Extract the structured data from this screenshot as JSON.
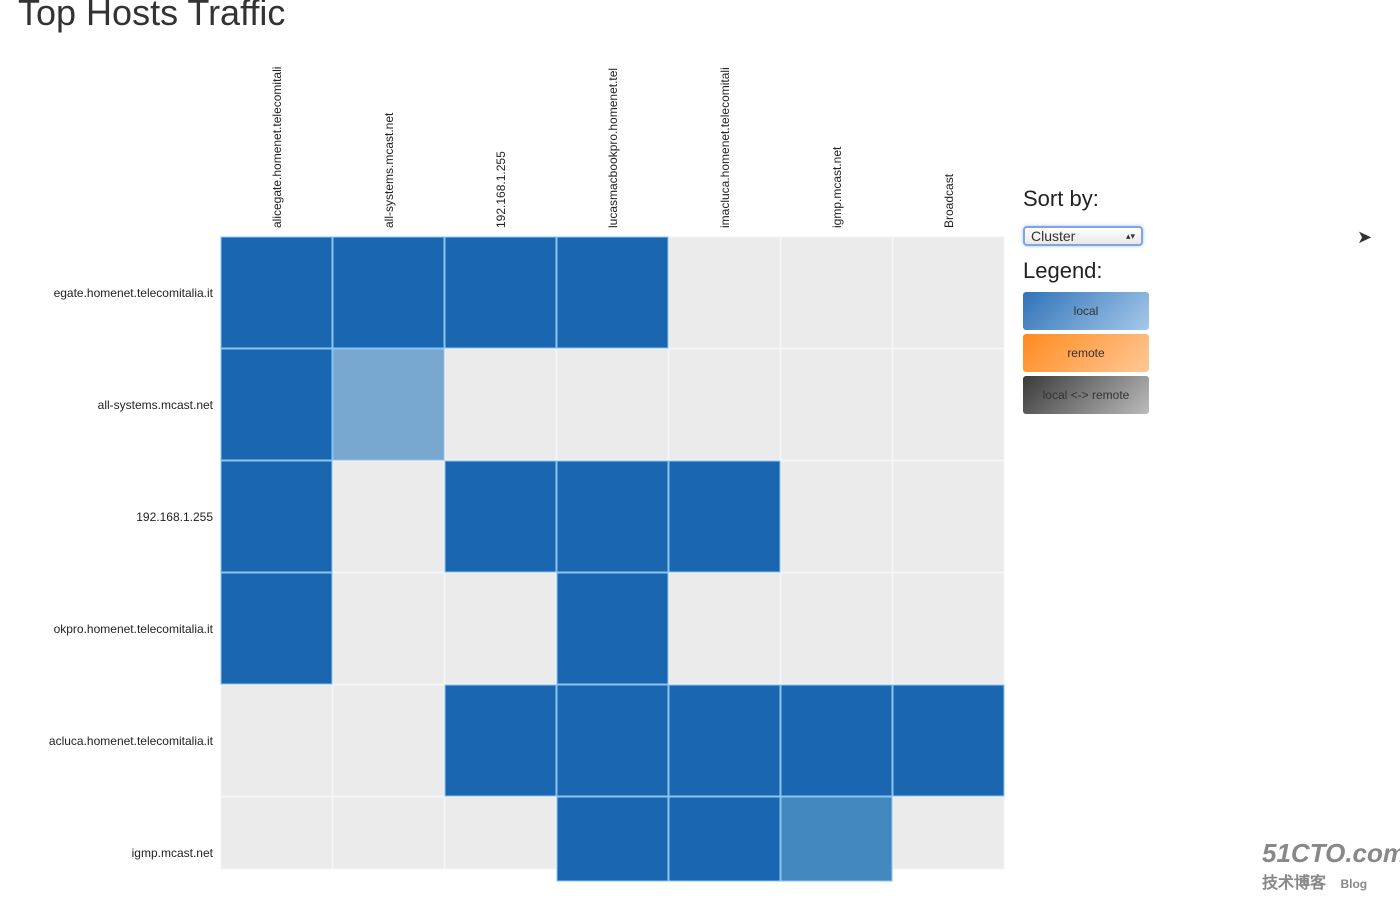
{
  "title": "Top Hosts Traffic",
  "sort": {
    "label": "Sort by:",
    "value": "Cluster"
  },
  "legend": {
    "label": "Legend:",
    "items": [
      "local",
      "remote",
      "local <-> remote"
    ]
  },
  "watermark": {
    "main": "51CTO.com",
    "sub": "技术博客",
    "tag": "Blog"
  },
  "colors": {
    "local": "#1a66b0",
    "empty": "#ebebeb",
    "local_mid": "#78a8cf",
    "local_mid2": "#4488c0"
  },
  "chart_data": {
    "type": "heatmap",
    "title": "Top Hosts Traffic",
    "columns": [
      "alicegate.homenet.telecomitali",
      "all-systems.mcast.net",
      "192.168.1.255",
      "lucasmacbookpro.homenet.tel",
      "imacluca.homenet.telecomitali",
      "igmp.mcast.net",
      "Broadcast"
    ],
    "rows": [
      "egate.homenet.telecomitalia.it",
      "all-systems.mcast.net",
      "192.168.1.255",
      "okpro.homenet.telecomitalia.it",
      "acluca.homenet.telecomitalia.it",
      "igmp.mcast.net"
    ],
    "values": [
      [
        1,
        1,
        1,
        1,
        0,
        0,
        0
      ],
      [
        1,
        0.5,
        0,
        0,
        0,
        0,
        0
      ],
      [
        1,
        0,
        1,
        1,
        1,
        0,
        0
      ],
      [
        1,
        0,
        0,
        1,
        0,
        0,
        0
      ],
      [
        0,
        0,
        1,
        1,
        1,
        1,
        1
      ],
      [
        0,
        0,
        0,
        1,
        1,
        0.75,
        0
      ]
    ]
  }
}
